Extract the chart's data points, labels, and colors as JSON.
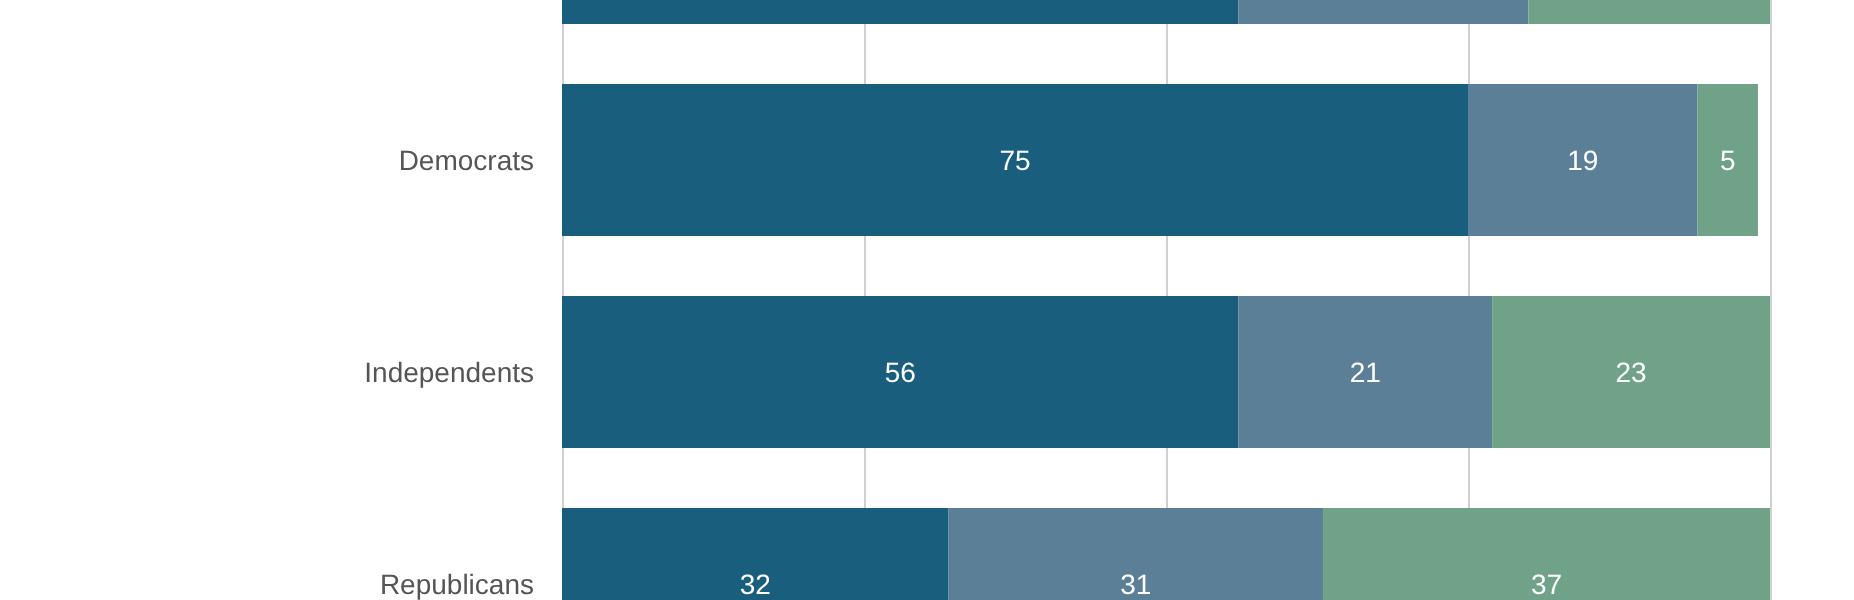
{
  "chart_data": {
    "type": "bar",
    "orientation": "horizontal",
    "stacked": true,
    "categories": [
      null,
      "Democrats",
      "Independents",
      "Republicans"
    ],
    "series": [
      {
        "color": "#1a5e7e",
        "values": [
          56,
          75,
          56,
          32
        ],
        "value_labels": [
          null,
          "75",
          "56",
          "32"
        ]
      },
      {
        "color": "#5b7f96",
        "values": [
          24,
          19,
          21,
          31
        ],
        "value_labels": [
          null,
          "19",
          "21",
          "31"
        ]
      },
      {
        "color": "#6fa287",
        "values": [
          20,
          5,
          23,
          37
        ],
        "value_labels": [
          null,
          "5",
          "23",
          "37"
        ]
      }
    ],
    "xlim": [
      0,
      100
    ],
    "xticks": [
      {
        "value": 0,
        "label": null
      },
      {
        "value": 25,
        "label": null
      },
      {
        "value": 50,
        "label": null
      },
      {
        "value": 75,
        "label": null
      },
      {
        "value": 100,
        "label": null
      }
    ],
    "grid": "x",
    "tick_labels": "y"
  }
}
